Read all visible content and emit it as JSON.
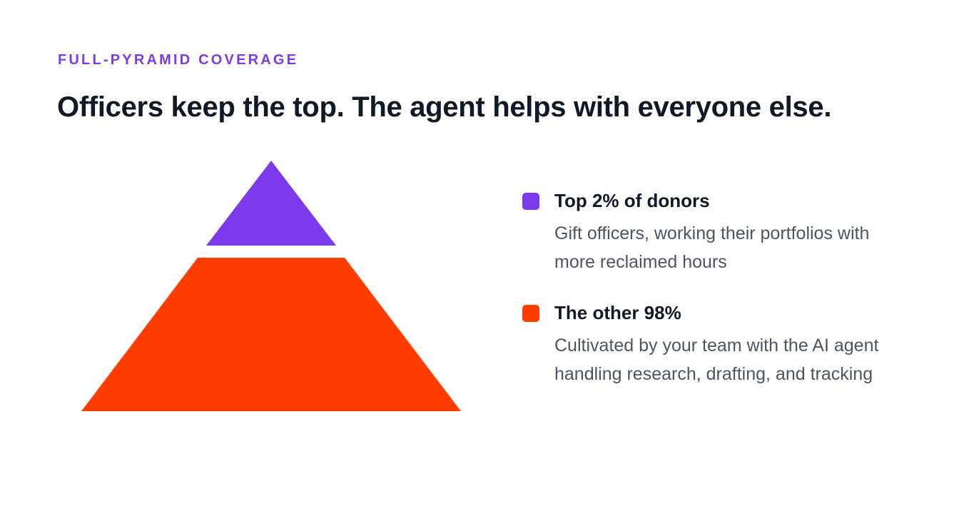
{
  "eyebrow": "FULL-PYRAMID COVERAGE",
  "headline": "Officers keep the top. The agent helps with everyone else.",
  "colors": {
    "top_tier": "#7c3aed",
    "base_tier": "#ff3d00"
  },
  "legend": [
    {
      "title": "Top 2% of donors",
      "description": "Gift officers, working their portfolios with more reclaimed hours"
    },
    {
      "title": "The other 98%",
      "description": "Cultivated by your team with the AI agent handling research, drafting, and tracking"
    }
  ]
}
